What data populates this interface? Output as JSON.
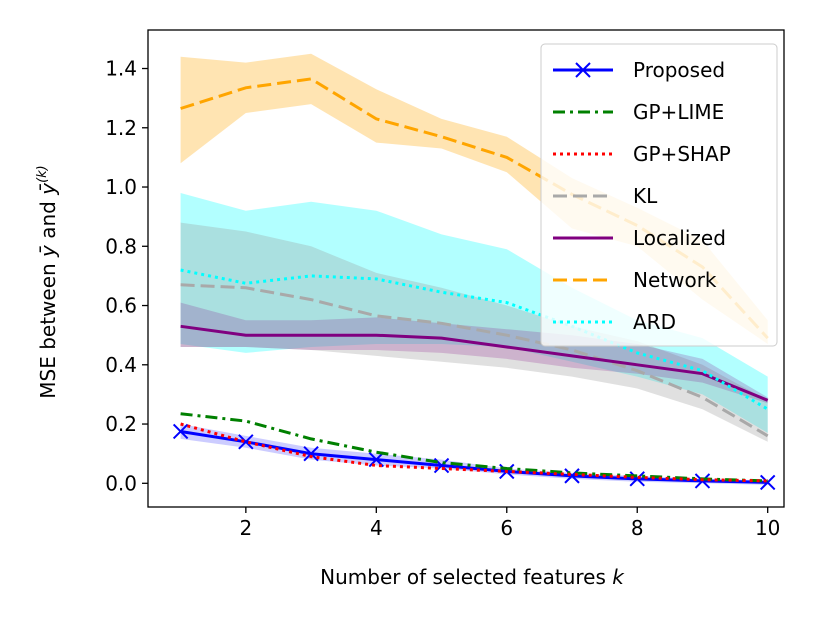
{
  "chart_data": {
    "type": "line",
    "x": [
      1,
      2,
      3,
      4,
      5,
      6,
      7,
      8,
      9,
      10
    ],
    "xlabel": "Number of selected features",
    "xlabel_var": "k",
    "ylabel": "MSE between",
    "ylabel_var1": "ȳ",
    "ylabel_and": "and",
    "ylabel_var2": "ȳ",
    "ylabel_sup": "(k)",
    "xlim": [
      0.5,
      10.25
    ],
    "ylim": [
      -0.08,
      1.53
    ],
    "xticks": [
      2,
      4,
      6,
      8,
      10
    ],
    "yticks": [
      0.0,
      0.2,
      0.4,
      0.6,
      0.8,
      1.0,
      1.2,
      1.4
    ],
    "legend_position": "top-right",
    "bands": [
      {
        "name": "Network",
        "color": "#ffa500",
        "opacity": 0.3,
        "upper": [
          1.44,
          1.42,
          1.45,
          1.33,
          1.23,
          1.17,
          1.03,
          0.93,
          0.82,
          0.55
        ],
        "lower": [
          1.08,
          1.25,
          1.28,
          1.15,
          1.13,
          1.05,
          0.86,
          0.8,
          0.62,
          0.47
        ]
      },
      {
        "name": "ARD",
        "color": "#00ffff",
        "opacity": 0.3,
        "upper": [
          0.98,
          0.92,
          0.95,
          0.92,
          0.84,
          0.79,
          0.66,
          0.55,
          0.49,
          0.36
        ],
        "lower": [
          0.47,
          0.44,
          0.46,
          0.47,
          0.47,
          0.46,
          0.41,
          0.36,
          0.3,
          0.17
        ]
      },
      {
        "name": "KL",
        "color": "#999999",
        "opacity": 0.3,
        "upper": [
          0.88,
          0.85,
          0.8,
          0.71,
          0.66,
          0.6,
          0.53,
          0.48,
          0.4,
          0.28
        ],
        "lower": [
          0.46,
          0.46,
          0.45,
          0.43,
          0.41,
          0.39,
          0.36,
          0.32,
          0.25,
          0.14
        ]
      },
      {
        "name": "Localized",
        "color": "#800080",
        "opacity": 0.2,
        "upper": [
          0.61,
          0.55,
          0.55,
          0.56,
          0.54,
          0.52,
          0.5,
          0.47,
          0.42,
          0.29
        ],
        "lower": [
          0.46,
          0.46,
          0.45,
          0.45,
          0.44,
          0.42,
          0.39,
          0.37,
          0.34,
          0.27
        ]
      },
      {
        "name": "Proposed",
        "color": "#0000ff",
        "opacity": 0.2,
        "upper": [
          0.2,
          0.16,
          0.12,
          0.1,
          0.08,
          0.05,
          0.035,
          0.025,
          0.015,
          0.01
        ],
        "lower": [
          0.15,
          0.12,
          0.08,
          0.06,
          0.05,
          0.03,
          0.015,
          0.005,
          0.0,
          -0.005
        ]
      }
    ],
    "series": [
      {
        "name": "Proposed",
        "color": "#0000ff",
        "dash": "solid",
        "marker": "x",
        "values": [
          0.175,
          0.14,
          0.1,
          0.08,
          0.06,
          0.04,
          0.025,
          0.015,
          0.008,
          0.003
        ]
      },
      {
        "name": "GP+LIME",
        "color": "#008000",
        "dash": "dashdot",
        "marker": "none",
        "values": [
          0.235,
          0.21,
          0.15,
          0.105,
          0.07,
          0.05,
          0.035,
          0.025,
          0.015,
          0.008
        ]
      },
      {
        "name": "GP+SHAP",
        "color": "#ff0000",
        "dash": "dotted",
        "marker": "none",
        "values": [
          0.2,
          0.14,
          0.09,
          0.06,
          0.05,
          0.04,
          0.03,
          0.02,
          0.012,
          0.008
        ]
      },
      {
        "name": "KL",
        "color": "#a9a9a9",
        "dash": "dashed",
        "marker": "none",
        "values": [
          0.67,
          0.66,
          0.62,
          0.565,
          0.54,
          0.5,
          0.45,
          0.38,
          0.29,
          0.16
        ]
      },
      {
        "name": "Localized",
        "color": "#800080",
        "dash": "solid",
        "marker": "none",
        "values": [
          0.53,
          0.5,
          0.5,
          0.5,
          0.49,
          0.46,
          0.43,
          0.4,
          0.37,
          0.28
        ]
      },
      {
        "name": "Network",
        "color": "#ffa500",
        "dash": "dashed",
        "marker": "none",
        "values": [
          1.265,
          1.335,
          1.365,
          1.23,
          1.17,
          1.1,
          0.975,
          0.87,
          0.73,
          0.49
        ]
      },
      {
        "name": "ARD",
        "color": "#00ffff",
        "dash": "dotted",
        "marker": "none",
        "values": [
          0.72,
          0.675,
          0.7,
          0.69,
          0.645,
          0.61,
          0.53,
          0.44,
          0.38,
          0.25
        ]
      }
    ]
  }
}
